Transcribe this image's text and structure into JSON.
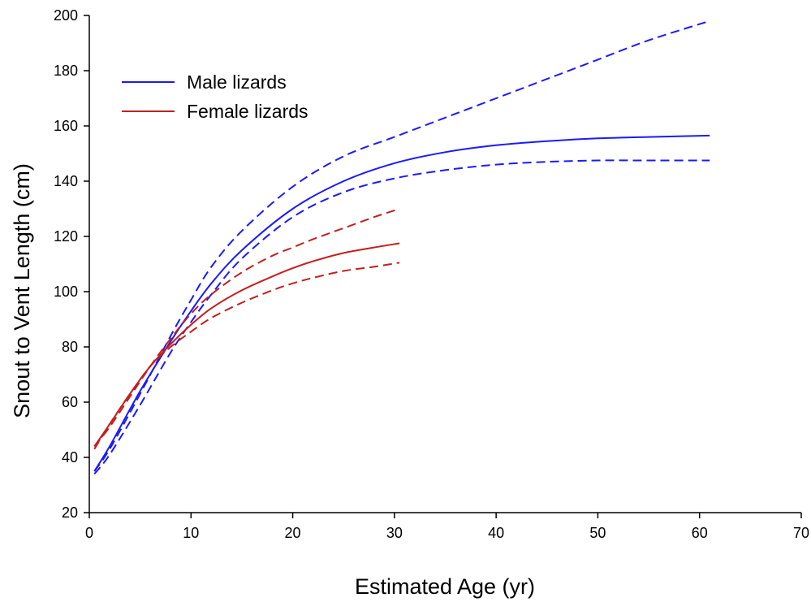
{
  "chart_data": {
    "type": "line",
    "title": "",
    "xlabel": "Estimated Age (yr)",
    "ylabel": "Snout to Vent Length (cm)",
    "xlim": [
      0,
      70
    ],
    "ylim": [
      20,
      200
    ],
    "xticks": [
      0,
      10,
      20,
      30,
      40,
      50,
      60,
      70
    ],
    "yticks": [
      20,
      40,
      60,
      80,
      100,
      120,
      140,
      160,
      180,
      200
    ],
    "grid": false,
    "legend_position": "top-left",
    "legend": [
      {
        "label": "Male lizards",
        "color": "#1a1aff"
      },
      {
        "label": "Female lizards",
        "color": "#c41e1e"
      }
    ],
    "series": [
      {
        "name": "Male lizards",
        "color": "#1a1aff",
        "style": "solid",
        "x": [
          0.5,
          2,
          5,
          8,
          10,
          12,
          15,
          20,
          25,
          30,
          35,
          40,
          45,
          50,
          55,
          61
        ],
        "y": [
          35,
          44,
          64,
          82,
          93,
          103,
          115,
          130,
          140,
          146.5,
          150.5,
          153,
          154.5,
          155.5,
          156,
          156.5
        ]
      },
      {
        "color": "#1a1aff",
        "style": "dashed",
        "x": [
          0.5,
          2,
          5,
          8,
          10,
          12,
          15,
          20,
          25,
          30,
          35,
          40,
          45,
          50,
          55,
          61
        ],
        "y": [
          35,
          43,
          63,
          84,
          97,
          109,
          122,
          138,
          149,
          156,
          163,
          170,
          177,
          184,
          191,
          198
        ]
      },
      {
        "color": "#1a1aff",
        "style": "dashed",
        "x": [
          0.5,
          2,
          5,
          8,
          10,
          12,
          15,
          20,
          25,
          30,
          35,
          40,
          45,
          50,
          55,
          61
        ],
        "y": [
          34,
          41,
          59,
          78,
          89,
          99,
          112,
          127,
          136,
          141,
          144,
          146,
          147,
          147.5,
          147.5,
          147.5
        ]
      },
      {
        "name": "Female lizards",
        "color": "#c41e1e",
        "style": "solid",
        "x": [
          0.5,
          2,
          4,
          6,
          8,
          10,
          12,
          15,
          18,
          20,
          22,
          25,
          28,
          30.5
        ],
        "y": [
          44,
          52,
          63,
          73,
          81,
          88,
          94,
          100.5,
          105.5,
          108.5,
          111,
          114,
          116,
          117.5
        ]
      },
      {
        "color": "#c41e1e",
        "style": "dashed",
        "x": [
          0.5,
          2,
          4,
          6,
          8,
          10,
          12,
          15,
          18,
          20,
          22,
          25,
          28,
          30.5
        ],
        "y": [
          44,
          51,
          62,
          73,
          83,
          92,
          99,
          107,
          113,
          116,
          119,
          123,
          127,
          130
        ]
      },
      {
        "color": "#c41e1e",
        "style": "dashed",
        "x": [
          0.5,
          2,
          4,
          6,
          8,
          10,
          12,
          15,
          18,
          20,
          22,
          25,
          28,
          30.5
        ],
        "y": [
          43,
          52,
          63,
          73,
          80,
          85.5,
          90.5,
          96,
          100.5,
          103,
          105,
          107.5,
          109,
          110.5
        ]
      }
    ]
  }
}
